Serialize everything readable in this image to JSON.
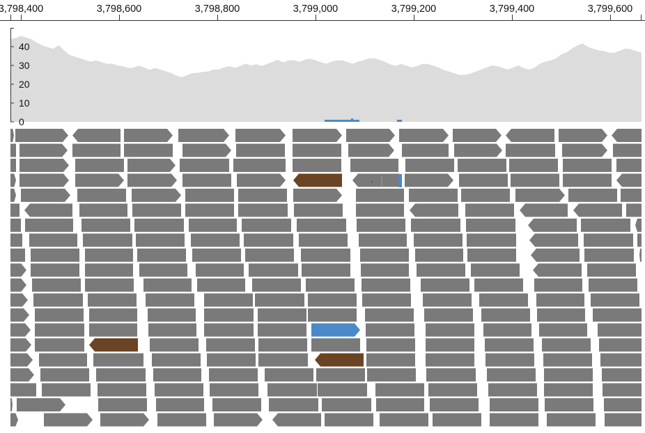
{
  "ruler": {
    "ticks": [
      "3,798,400",
      "3,798,600",
      "3,798,800",
      "3,799,000",
      "3,799,200",
      "3,799,400",
      "3,799,600"
    ]
  },
  "coverage": {
    "y_ticks": [
      "0",
      "10",
      "20",
      "30",
      "40"
    ],
    "ylim": [
      0,
      50
    ],
    "fill_color": "#dcdcdc",
    "mismatch_color": "#4a8ac8",
    "profile": [
      44,
      45,
      46,
      45,
      44,
      42,
      41,
      40,
      39,
      41,
      38,
      36,
      35,
      34,
      33,
      32,
      33,
      32,
      31,
      31,
      30,
      30,
      29,
      29,
      30,
      29,
      28,
      29,
      28,
      27,
      26,
      25,
      24,
      25,
      26,
      26,
      27,
      27,
      28,
      28,
      29,
      30,
      29,
      30,
      31,
      30,
      31,
      30,
      31,
      32,
      33,
      32,
      33,
      33,
      32,
      33,
      34,
      33,
      32,
      31,
      32,
      33,
      33,
      32,
      31,
      32,
      33,
      34,
      34,
      33,
      32,
      31,
      30,
      31,
      30,
      29,
      30,
      31,
      31,
      30,
      29,
      28,
      27,
      26,
      25,
      25,
      26,
      27,
      28,
      29,
      30,
      30,
      29,
      28,
      29,
      30,
      29,
      28,
      29,
      31,
      32,
      33,
      34,
      36,
      37,
      39,
      41,
      42,
      40,
      39,
      38,
      38,
      37,
      37,
      38,
      39,
      39,
      38,
      37
    ]
  },
  "colors": {
    "read": "#7a7a7a",
    "reverse_highlight": "#6b4423",
    "forward_highlight": "#4a8ac8",
    "axis": "#333333"
  },
  "rows": [
    [
      [
        15,
        20,
        "f"
      ],
      [
        22,
        98,
        "f"
      ],
      [
        104,
        173,
        "r"
      ],
      [
        178,
        248,
        "f"
      ],
      [
        256,
        329,
        "f"
      ],
      [
        338,
        410,
        "f"
      ],
      [
        420,
        491,
        "f"
      ],
      [
        497,
        567,
        "f"
      ],
      [
        573,
        644,
        "f"
      ],
      [
        650,
        720,
        "f"
      ],
      [
        726,
        796,
        "r"
      ],
      [
        802,
        872,
        "f"
      ],
      [
        878,
        921,
        "r"
      ]
    ],
    [
      [
        15,
        23,
        "n"
      ],
      [
        28,
        97,
        "f"
      ],
      [
        104,
        173,
        "n"
      ],
      [
        178,
        248,
        "n"
      ],
      [
        262,
        332,
        "f"
      ],
      [
        339,
        409,
        "n"
      ],
      [
        420,
        490,
        "n"
      ],
      [
        500,
        566,
        "f"
      ],
      [
        577,
        644,
        "n"
      ],
      [
        652,
        721,
        "f"
      ],
      [
        726,
        797,
        "n"
      ],
      [
        807,
        872,
        "f"
      ],
      [
        880,
        921,
        "n"
      ]
    ],
    [
      [
        15,
        23,
        "n"
      ],
      [
        28,
        99,
        "f"
      ],
      [
        108,
        178,
        "n"
      ],
      [
        183,
        252,
        "f"
      ],
      [
        258,
        329,
        "n"
      ],
      [
        335,
        410,
        "n"
      ],
      [
        420,
        490,
        "n"
      ],
      [
        503,
        572,
        "n"
      ],
      [
        582,
        652,
        "n"
      ],
      [
        657,
        727,
        "n"
      ],
      [
        731,
        801,
        "n"
      ],
      [
        808,
        878,
        "n"
      ],
      [
        885,
        921,
        "n"
      ]
    ],
    [
      [
        15,
        23,
        "f"
      ],
      [
        28,
        99,
        "f"
      ],
      [
        108,
        178,
        "f"
      ],
      [
        183,
        254,
        "f"
      ],
      [
        262,
        332,
        "n"
      ],
      [
        340,
        410,
        "f"
      ],
      [
        421,
        491,
        "r_brown"
      ],
      [
        506,
        573,
        "r"
      ],
      [
        581,
        651,
        "f"
      ],
      [
        659,
        729,
        "n"
      ],
      [
        733,
        803,
        "n"
      ],
      [
        808,
        878,
        "n"
      ],
      [
        885,
        921,
        "r"
      ]
    ],
    [
      [
        15,
        23,
        "f"
      ],
      [
        30,
        101,
        "f"
      ],
      [
        111,
        181,
        "n"
      ],
      [
        189,
        260,
        "f"
      ],
      [
        266,
        336,
        "n"
      ],
      [
        342,
        412,
        "n"
      ],
      [
        421,
        491,
        "f"
      ],
      [
        511,
        580,
        "n"
      ],
      [
        587,
        657,
        "n"
      ],
      [
        662,
        732,
        "n"
      ],
      [
        740,
        811,
        "f"
      ],
      [
        816,
        886,
        "n"
      ],
      [
        891,
        921,
        "n"
      ]
    ],
    [
      [
        15,
        28,
        "n"
      ],
      [
        35,
        104,
        "r"
      ],
      [
        114,
        183,
        "n"
      ],
      [
        190,
        260,
        "n"
      ],
      [
        266,
        336,
        "n"
      ],
      [
        342,
        413,
        "n"
      ],
      [
        422,
        492,
        "n"
      ],
      [
        511,
        580,
        "n"
      ],
      [
        588,
        658,
        "r"
      ],
      [
        668,
        738,
        "n"
      ],
      [
        746,
        815,
        "r"
      ],
      [
        823,
        893,
        "r"
      ],
      [
        899,
        921,
        "n"
      ]
    ],
    [
      [
        15,
        30,
        "n"
      ],
      [
        36,
        105,
        "n"
      ],
      [
        117,
        187,
        "n"
      ],
      [
        193,
        264,
        "n"
      ],
      [
        271,
        340,
        "n"
      ],
      [
        347,
        418,
        "n"
      ],
      [
        426,
        497,
        "n"
      ],
      [
        512,
        582,
        "n"
      ],
      [
        590,
        661,
        "n"
      ],
      [
        669,
        740,
        "n"
      ],
      [
        758,
        828,
        "r"
      ],
      [
        834,
        905,
        "n"
      ],
      [
        912,
        921,
        "r"
      ]
    ],
    [
      [
        15,
        32,
        "n"
      ],
      [
        42,
        111,
        "n"
      ],
      [
        119,
        190,
        "n"
      ],
      [
        195,
        265,
        "n"
      ],
      [
        274,
        344,
        "n"
      ],
      [
        350,
        421,
        "n"
      ],
      [
        429,
        499,
        "n"
      ],
      [
        515,
        584,
        "n"
      ],
      [
        594,
        664,
        "n"
      ],
      [
        670,
        741,
        "n"
      ],
      [
        760,
        830,
        "r"
      ],
      [
        838,
        909,
        "n"
      ],
      [
        915,
        921,
        "n"
      ]
    ],
    [
      [
        15,
        36,
        "n"
      ],
      [
        44,
        114,
        "n"
      ],
      [
        122,
        191,
        "n"
      ],
      [
        197,
        267,
        "n"
      ],
      [
        276,
        346,
        "n"
      ],
      [
        352,
        422,
        "n"
      ],
      [
        432,
        503,
        "n"
      ],
      [
        517,
        587,
        "n"
      ],
      [
        596,
        665,
        "n"
      ],
      [
        671,
        741,
        "n"
      ],
      [
        762,
        832,
        "r"
      ],
      [
        839,
        910,
        "n"
      ],
      [
        918,
        921,
        "r"
      ]
    ],
    [
      [
        15,
        38,
        "f"
      ],
      [
        44,
        114,
        "n"
      ],
      [
        122,
        191,
        "n"
      ],
      [
        200,
        269,
        "n"
      ],
      [
        281,
        350,
        "n"
      ],
      [
        357,
        428,
        "n"
      ],
      [
        433,
        503,
        "n"
      ],
      [
        518,
        587,
        "n"
      ],
      [
        598,
        668,
        "n"
      ],
      [
        676,
        746,
        "n"
      ],
      [
        765,
        835,
        "r"
      ],
      [
        843,
        913,
        "n"
      ]
    ],
    [
      [
        15,
        38,
        "f"
      ],
      [
        46,
        116,
        "n"
      ],
      [
        122,
        192,
        "n"
      ],
      [
        206,
        275,
        "n"
      ],
      [
        283,
        352,
        "n"
      ],
      [
        362,
        432,
        "n"
      ],
      [
        439,
        509,
        "n"
      ],
      [
        519,
        589,
        "n"
      ],
      [
        604,
        674,
        "n"
      ],
      [
        681,
        751,
        "n"
      ],
      [
        767,
        836,
        "n"
      ],
      [
        845,
        915,
        "n"
      ]
    ],
    [
      [
        15,
        40,
        "f"
      ],
      [
        48,
        119,
        "n"
      ],
      [
        126,
        196,
        "n"
      ],
      [
        209,
        279,
        "n"
      ],
      [
        293,
        363,
        "n"
      ],
      [
        366,
        437,
        "n"
      ],
      [
        442,
        512,
        "n"
      ],
      [
        520,
        590,
        "n"
      ],
      [
        607,
        677,
        "n"
      ],
      [
        688,
        758,
        "n"
      ],
      [
        770,
        839,
        "n"
      ],
      [
        848,
        918,
        "n"
      ]
    ],
    [
      [
        15,
        42,
        "f"
      ],
      [
        50,
        120,
        "n"
      ],
      [
        128,
        197,
        "n"
      ],
      [
        212,
        281,
        "n"
      ],
      [
        293,
        364,
        "n"
      ],
      [
        370,
        440,
        "n"
      ],
      [
        442,
        512,
        "n"
      ],
      [
        524,
        594,
        "n"
      ],
      [
        609,
        679,
        "n"
      ],
      [
        691,
        761,
        "n"
      ],
      [
        771,
        840,
        "n"
      ],
      [
        851,
        921,
        "n"
      ]
    ],
    [
      [
        15,
        44,
        "f"
      ],
      [
        50,
        121,
        "n"
      ],
      [
        128,
        197,
        "n"
      ],
      [
        213,
        282,
        "n"
      ],
      [
        293,
        364,
        "n"
      ],
      [
        370,
        440,
        "n"
      ],
      [
        447,
        517,
        "f_blue"
      ],
      [
        525,
        595,
        "n"
      ],
      [
        611,
        681,
        "n"
      ],
      [
        694,
        763,
        "n"
      ],
      [
        774,
        843,
        "n"
      ],
      [
        858,
        921,
        "n"
      ]
    ],
    [
      [
        15,
        45,
        "f"
      ],
      [
        50,
        121,
        "n"
      ],
      [
        128,
        198,
        "r_brown"
      ],
      [
        215,
        285,
        "n"
      ],
      [
        296,
        366,
        "n"
      ],
      [
        371,
        441,
        "n"
      ],
      [
        447,
        517,
        "n"
      ],
      [
        526,
        596,
        "n"
      ],
      [
        611,
        681,
        "n"
      ],
      [
        696,
        766,
        "n"
      ],
      [
        778,
        848,
        "n"
      ],
      [
        860,
        921,
        "n"
      ]
    ],
    [
      [
        15,
        47,
        "f"
      ],
      [
        56,
        125,
        "n"
      ],
      [
        134,
        206,
        "n"
      ],
      [
        218,
        288,
        "n"
      ],
      [
        297,
        367,
        "n"
      ],
      [
        371,
        442,
        "n"
      ],
      [
        452,
        522,
        "r_brown"
      ],
      [
        526,
        596,
        "n"
      ],
      [
        611,
        681,
        "n"
      ],
      [
        697,
        767,
        "n"
      ],
      [
        780,
        850,
        "n"
      ],
      [
        862,
        921,
        "n"
      ]
    ],
    [
      [
        15,
        49,
        "f"
      ],
      [
        58,
        128,
        "n"
      ],
      [
        138,
        209,
        "n"
      ],
      [
        220,
        289,
        "n"
      ],
      [
        300,
        370,
        "n"
      ],
      [
        380,
        450,
        "n"
      ],
      [
        454,
        524,
        "n"
      ],
      [
        527,
        597,
        "n"
      ],
      [
        612,
        683,
        "n"
      ],
      [
        699,
        769,
        "n"
      ],
      [
        781,
        851,
        "n"
      ],
      [
        864,
        921,
        "n"
      ]
    ],
    [
      [
        15,
        52,
        "n"
      ],
      [
        60,
        130,
        "n"
      ],
      [
        140,
        210,
        "n"
      ],
      [
        222,
        292,
        "n"
      ],
      [
        301,
        371,
        "n"
      ],
      [
        384,
        455,
        "n"
      ],
      [
        456,
        527,
        "n"
      ],
      [
        539,
        609,
        "n"
      ],
      [
        615,
        685,
        "n"
      ],
      [
        701,
        771,
        "n"
      ],
      [
        781,
        851,
        "n"
      ],
      [
        865,
        921,
        "n"
      ]
    ],
    [
      [
        15,
        18,
        "f"
      ],
      [
        24,
        94,
        "f"
      ],
      [
        141,
        211,
        "n"
      ],
      [
        224,
        293,
        "n"
      ],
      [
        305,
        375,
        "n"
      ],
      [
        386,
        457,
        "n"
      ],
      [
        462,
        533,
        "n"
      ],
      [
        540,
        609,
        "n"
      ],
      [
        617,
        687,
        "n"
      ],
      [
        703,
        773,
        "n"
      ],
      [
        782,
        852,
        "n"
      ],
      [
        867,
        921,
        "n"
      ]
    ],
    [
      [
        15,
        26,
        "f"
      ],
      [
        63,
        133,
        "f"
      ],
      [
        144,
        214,
        "f"
      ],
      [
        226,
        296,
        "n"
      ],
      [
        307,
        377,
        "f"
      ],
      [
        391,
        461,
        "r"
      ],
      [
        466,
        536,
        "n"
      ],
      [
        545,
        615,
        "n"
      ],
      [
        621,
        691,
        "n"
      ],
      [
        703,
        773,
        "n"
      ],
      [
        785,
        855,
        "n"
      ],
      [
        868,
        921,
        "n"
      ]
    ]
  ]
}
